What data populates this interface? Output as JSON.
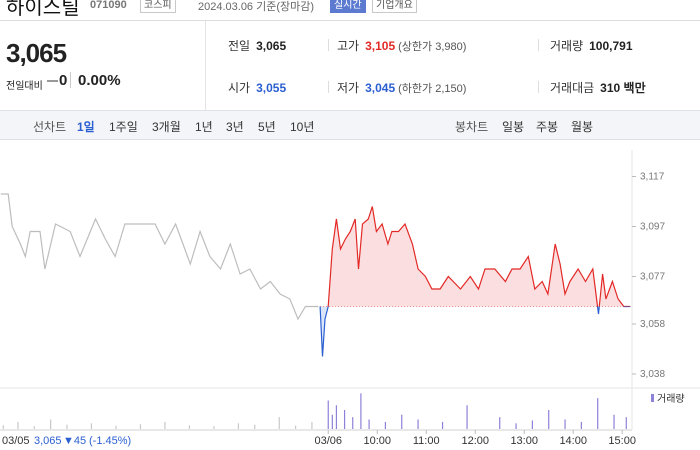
{
  "header": {
    "name": "하이스틸",
    "code": "071090",
    "market": "코스피",
    "date": "2024.03.06 기준(장마감)",
    "realtime": "실시간",
    "company": "기업개요"
  },
  "summary": {
    "price": "3,065",
    "change_label": "전일대비",
    "change": "0",
    "rate": "0.00%"
  },
  "info": [
    {
      "label": "전일",
      "value": "3,065"
    },
    {
      "label": "고가",
      "value": "3,105",
      "note": "(상한가 3,980)"
    },
    {
      "label": "거래량",
      "value": "100,791"
    },
    {
      "label": "시가",
      "value": "3,055"
    },
    {
      "label": "저가",
      "value": "3,045",
      "note": "(하한가 2,150)"
    },
    {
      "label": "거래대금",
      "value": "310 백만"
    }
  ],
  "tabs": {
    "line": "선차트",
    "periods": [
      "1일",
      "1주일",
      "3개월",
      "1년",
      "3년",
      "5년",
      "10년"
    ],
    "candle": "봉차트",
    "candle_periods": [
      "일봉",
      "주봉",
      "월봉"
    ]
  },
  "chart_data": {
    "type": "line",
    "baseline": 3065,
    "xlim": [
      -12,
      762
    ],
    "ylim": [
      3034,
      3124
    ],
    "xticks": [
      {
        "value": 390,
        "label": "03/06"
      },
      {
        "value": 450,
        "label": "10:00"
      },
      {
        "value": 510,
        "label": "11:00"
      },
      {
        "value": 570,
        "label": "12:00"
      },
      {
        "value": 630,
        "label": "13:00"
      },
      {
        "value": 690,
        "label": "14:00"
      },
      {
        "value": 750,
        "label": "15:00"
      }
    ],
    "yticks": [
      {
        "value": 3117,
        "label": "3,117"
      },
      {
        "value": 3097,
        "label": "3,097"
      },
      {
        "value": 3077,
        "label": "3,077"
      },
      {
        "value": 3058,
        "label": "3,058"
      },
      {
        "value": 3038,
        "label": "3,038"
      }
    ],
    "series": [
      {
        "color": "#bdbdbd",
        "x": [
          -11,
          -2,
          3,
          13,
          19,
          25,
          37,
          43,
          56,
          74,
          86,
          105,
          117,
          129,
          141,
          160,
          178,
          190,
          203,
          221,
          233,
          245,
          258,
          270,
          282,
          294,
          307,
          319,
          331,
          343,
          353,
          362,
          378
        ],
        "values": [
          3110,
          3110,
          3097,
          3090,
          3085,
          3095,
          3095,
          3080,
          3098,
          3095,
          3085,
          3100,
          3092,
          3085,
          3098,
          3098,
          3098,
          3090,
          3098,
          3082,
          3095,
          3085,
          3080,
          3090,
          3078,
          3080,
          3072,
          3075,
          3070,
          3068,
          3060,
          3065,
          3065
        ]
      },
      {
        "color": "#e22926",
        "negative_color": "#2a5fd1",
        "fill": "#fbdfe0",
        "negative_fill": "#dbe6fa",
        "x": [
          380,
          383,
          386,
          390,
          395,
          400,
          405,
          411,
          417,
          423,
          427,
          432,
          439,
          444,
          449,
          456,
          463,
          468,
          476,
          484,
          493,
          500,
          509,
          517,
          527,
          537,
          552,
          564,
          574,
          582,
          594,
          607,
          615,
          625,
          635,
          643,
          652,
          659,
          668,
          674,
          680,
          686,
          696,
          705,
          714,
          721,
          726,
          730,
          738,
          745,
          752,
          760
        ],
        "values": [
          3065,
          3045,
          3060,
          3065,
          3088,
          3100,
          3088,
          3092,
          3095,
          3100,
          3080,
          3098,
          3100,
          3105,
          3095,
          3098,
          3090,
          3095,
          3095,
          3098,
          3090,
          3080,
          3077,
          3072,
          3072,
          3077,
          3072,
          3077,
          3072,
          3080,
          3080,
          3075,
          3080,
          3080,
          3085,
          3072,
          3075,
          3070,
          3090,
          3082,
          3070,
          3075,
          3080,
          3075,
          3080,
          3062,
          3078,
          3068,
          3075,
          3068,
          3065,
          3065
        ]
      }
    ],
    "volume_ylim": [
      0,
      8000
    ],
    "volume": [
      {
        "color": "#c8c8c8",
        "x": [
          -8,
          10,
          30,
          50,
          70,
          100,
          130,
          160,
          190,
          220,
          250,
          280,
          300,
          330,
          350,
          370
        ],
        "values": [
          800,
          1500,
          600,
          2000,
          900,
          1200,
          700,
          1000,
          1500,
          800,
          600,
          1200,
          900,
          2500,
          700,
          1500
        ]
      },
      {
        "name": "거래량",
        "color": "#8d82d9",
        "x": [
          390,
          395,
          400,
          410,
          420,
          430,
          440,
          460,
          480,
          500,
          530,
          560,
          600,
          620,
          640,
          660,
          680,
          700,
          720,
          740,
          755
        ],
        "values": [
          6000,
          3000,
          5000,
          4000,
          2500,
          7500,
          2000,
          1500,
          3000,
          2000,
          1500,
          5000,
          2500,
          1200,
          1800,
          4000,
          2000,
          1500,
          6500,
          3000,
          2500
        ]
      }
    ],
    "footer": {
      "date": "03/05",
      "price": "3,065",
      "change": "▼45",
      "rate": "(-1.45%)"
    }
  }
}
